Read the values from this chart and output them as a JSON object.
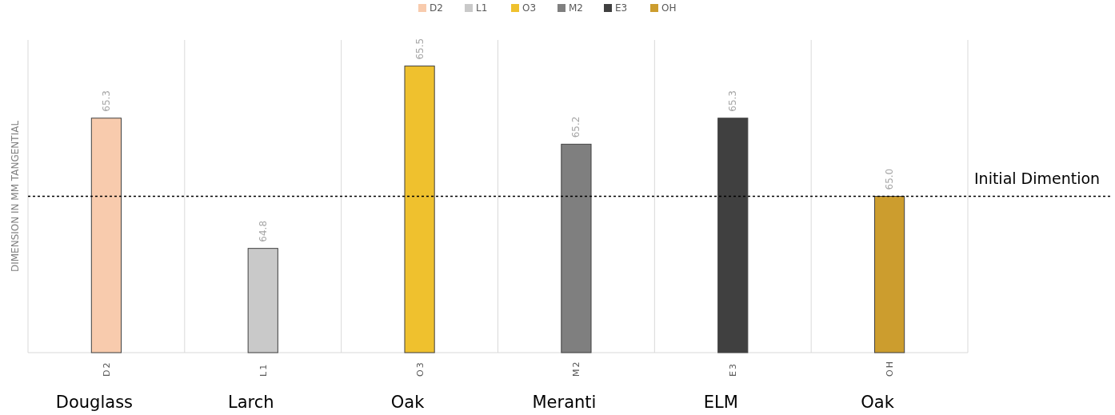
{
  "chart_data": {
    "type": "bar",
    "ylabel": "DIMENSION IN MM TANGENTIAL",
    "categories": [
      "D2",
      "L1",
      "O3",
      "M2",
      "E3",
      "OH"
    ],
    "values": [
      65.3,
      64.8,
      65.5,
      65.2,
      65.3,
      65.0
    ],
    "value_labels": [
      "65.3",
      "64.8",
      "65.5",
      "65.2",
      "65.3",
      "65.0"
    ],
    "colors": [
      "#f8cbad",
      "#c9c9c9",
      "#efc12e",
      "#7f7f7f",
      "#404040",
      "#cc9d2e"
    ],
    "ylim": [
      64.4,
      65.6
    ],
    "tick_labels": "x",
    "grid": "x",
    "legend": "top",
    "ref_lines": [
      {
        "axis": "y",
        "value": 65.0,
        "label": "Initial Dimention",
        "line_style": "dotted",
        "color": "#000000"
      }
    ],
    "annotations": [
      "Douglass",
      "Larch",
      "Oak",
      "Meranti",
      "ELM",
      "Oak"
    ]
  }
}
